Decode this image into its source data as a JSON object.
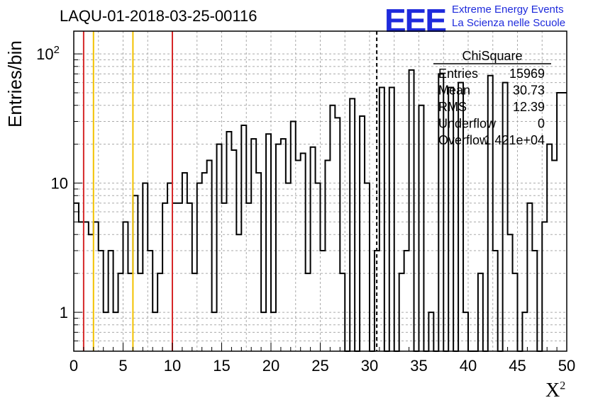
{
  "chart_data": {
    "type": "histogram",
    "title": "LAQU-01-2018-03-25-00116",
    "xlabel": "X",
    "xlabel_sup": "2",
    "ylabel": "Entries/bin",
    "log_y": true,
    "xlim": [
      0,
      50
    ],
    "ylim": [
      0.5,
      150
    ],
    "x_ticks": [
      "0",
      "5",
      "10",
      "15",
      "20",
      "25",
      "30",
      "35",
      "40",
      "45",
      "50"
    ],
    "y_ticks": [
      {
        "value": 1,
        "label": "1"
      },
      {
        "value": 10,
        "label": "10"
      },
      {
        "value": 100,
        "label": "10",
        "sup": "2"
      }
    ],
    "bin_width": 0.5,
    "values": [
      7,
      5,
      5,
      4,
      5,
      3,
      1,
      3,
      1,
      2,
      5,
      2,
      8,
      2,
      10,
      3,
      1,
      2,
      7,
      10,
      7,
      7,
      12,
      7,
      2,
      10,
      12,
      15,
      1,
      20,
      7,
      25,
      18,
      4,
      28,
      7,
      22,
      12,
      1,
      24,
      1,
      20,
      22,
      10,
      30,
      15,
      17,
      2,
      19,
      10,
      3,
      15,
      40,
      32,
      2,
      0,
      45,
      0,
      33,
      10,
      0,
      3,
      55,
      0,
      55,
      0,
      2,
      3,
      75,
      0,
      40,
      0,
      1,
      0,
      70,
      0,
      55,
      0,
      60,
      1,
      0,
      0,
      2,
      0,
      68,
      3,
      0,
      60,
      4,
      2,
      0,
      1,
      7,
      3,
      0,
      5,
      20,
      15,
      50,
      50
    ],
    "grid": true,
    "vertical_lines": [
      {
        "x": 1,
        "color": "#d62728",
        "style": "solid"
      },
      {
        "x": 2,
        "color": "#f2c200",
        "style": "solid"
      },
      {
        "x": 6,
        "color": "#f2c200",
        "style": "solid"
      },
      {
        "x": 10,
        "color": "#d62728",
        "style": "solid"
      },
      {
        "x": 30.73,
        "color": "#000000",
        "style": "dashed"
      }
    ],
    "stats_box": {
      "title": "ChiSquare",
      "rows": [
        {
          "label": "Entries",
          "value": "15969"
        },
        {
          "label": "Mean",
          "value": "30.73"
        },
        {
          "label": "RMS",
          "value": "12.39"
        },
        {
          "label": "Underflow",
          "value": "0"
        },
        {
          "label": "Overflow",
          "value": "1.421e+04"
        }
      ]
    }
  },
  "logo": {
    "mark": "EEE",
    "line1": "Extreme Energy Events",
    "line2": "La Scienza nelle Scuole"
  },
  "colors": {
    "red_line": "#d62728",
    "yellow_line": "#f2c200",
    "logo_blue": "#1f2bdc"
  }
}
